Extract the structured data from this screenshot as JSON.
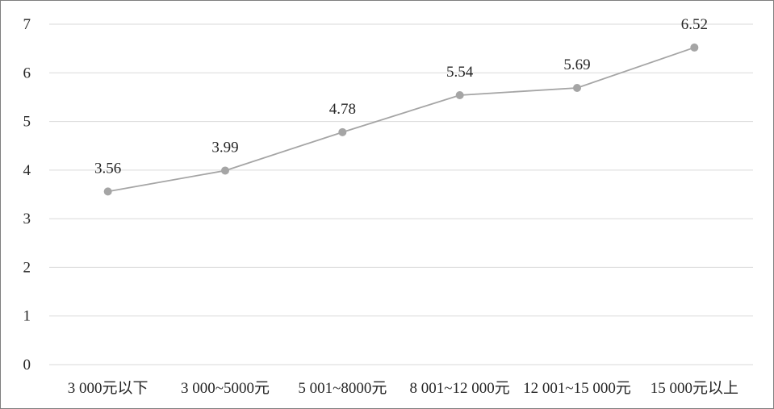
{
  "chart_data": {
    "type": "line",
    "title": "",
    "xlabel": "",
    "ylabel": "",
    "categories": [
      "3 000元以下",
      "3 000~5000元",
      "5 001~8000元",
      "8 001~12 000元",
      "12 001~15 000元",
      "15 000元以上"
    ],
    "series": [
      {
        "values": [
          3.56,
          3.99,
          4.78,
          5.54,
          5.69,
          6.52
        ],
        "data_labels": [
          "3.56",
          "3.99",
          "4.78",
          "5.54",
          "5.69",
          "6.52"
        ]
      }
    ],
    "ylim": [
      0,
      7
    ],
    "yticks": [
      0,
      1,
      2,
      3,
      4,
      5,
      6,
      7
    ],
    "ytick_labels": [
      "0",
      "1",
      "2",
      "3",
      "4",
      "5",
      "6",
      "7"
    ],
    "grid": true,
    "legend": "none",
    "colors": {
      "series": "#a5a5a5",
      "grid": "#d9d9d9",
      "text": "#262626",
      "frame": "#7f7f7f"
    }
  }
}
